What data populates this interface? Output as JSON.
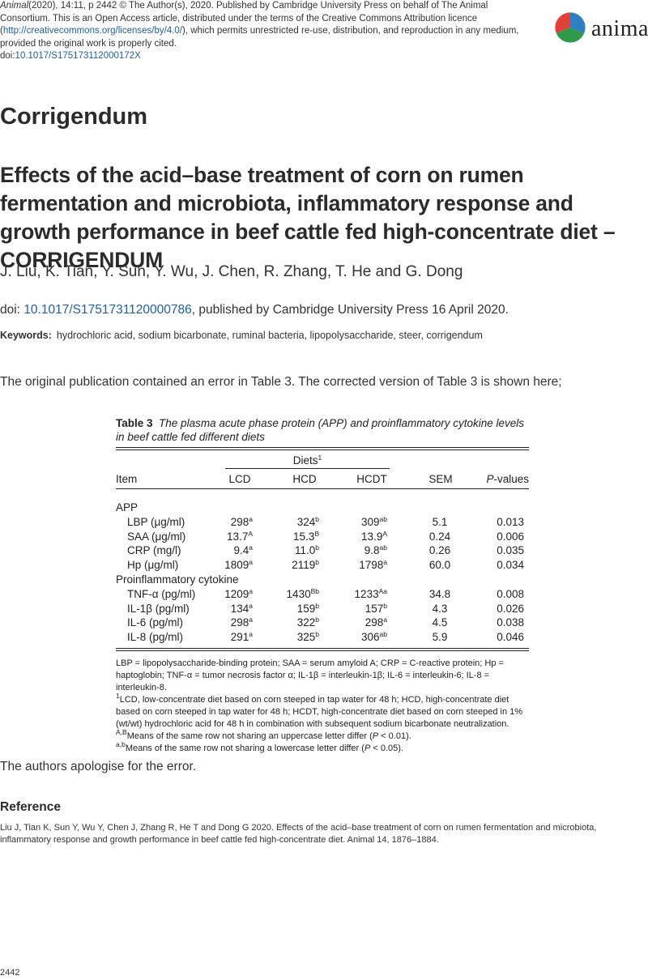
{
  "header": {
    "journal": "Animal",
    "meta": "(2020), 14:11, p 2442",
    "copyright": "© The Author(s), 2020. Published by Cambridge University Press on behalf of The Animal Consortium. This is an Open Access article, distributed under the terms of the Creative Commons Attribution licence (",
    "license_url": "http://creativecommons.org/licenses/by/4.0/",
    "copyright_end": "), which permits unrestricted re-use, distribution, and reproduction in any medium, provided the original work is properly cited.",
    "doi_prefix": "doi:",
    "doi": "10.1017/S175173112000172X",
    "logo_text": "animal"
  },
  "article": {
    "kind": "Corrigendum",
    "title": "Effects of the acid–base treatment of corn on rumen fermentation and microbiota, inflammatory response and growth performance in beef cattle fed high-concentrate diet – CORRIGENDUM",
    "authors": "J. Liu, K. Tian, Y. Sun, Y. Wu, J. Chen, R. Zhang, T. He and G. Dong",
    "doi_label": "doi: ",
    "original_doi": "10.1017/S1751731120000786",
    "doi_suffix": ", published by Cambridge University Press 16 April 2020.",
    "keywords_label": "Keywords:",
    "keywords": "hydrochloric acid, sodium bicarbonate, ruminal bacteria, lipopolysaccharide, steer, corrigendum",
    "intro": "The original publication contained an error in Table 3. The corrected version of Table 3 is shown here;",
    "apology": "The authors apologise for the error."
  },
  "table": {
    "label": "Table 3",
    "caption": "The plasma acute phase protein (APP) and proinflammatory cytokine levels in beef cattle fed different diets",
    "diets_header": "Diets",
    "diets_sup": "1",
    "columns": {
      "item": "Item",
      "lcd": "LCD",
      "hcd": "HCD",
      "hcdt": "HCDT",
      "sem": "SEM",
      "p": "P",
      "p_suffix": "-values"
    },
    "rows": [
      {
        "item": "APP",
        "indent": false,
        "header": true
      },
      {
        "item": "LBP (μg/ml)",
        "indent": true,
        "lcd": "298",
        "lcd_s": "a",
        "hcd": "324",
        "hcd_s": "b",
        "hcdt": "309",
        "hcdt_s": "ab",
        "sem": "5.1",
        "p": "0.013"
      },
      {
        "item": "SAA (μg/ml)",
        "indent": true,
        "lcd": "13.7",
        "lcd_s": "A",
        "hcd": "15.3",
        "hcd_s": "B",
        "hcdt": "13.9",
        "hcdt_s": "A",
        "sem": "0.24",
        "p": "0.006"
      },
      {
        "item": "CRP (mg/l)",
        "indent": true,
        "lcd": "9.4",
        "lcd_s": "a",
        "hcd": "11.0",
        "hcd_s": "b",
        "hcdt": "9.8",
        "hcdt_s": "ab",
        "sem": "0.26",
        "p": "0.035"
      },
      {
        "item": "Hp (μg/ml)",
        "indent": true,
        "lcd": "1809",
        "lcd_s": "a",
        "hcd": "2119",
        "hcd_s": "b",
        "hcdt": "1798",
        "hcdt_s": "a",
        "sem": "60.0",
        "p": "0.034"
      },
      {
        "item": "Proinflammatory cytokine",
        "indent": false,
        "header": true
      },
      {
        "item": "TNF-α (pg/ml)",
        "indent": true,
        "lcd": "1209",
        "lcd_s": "a",
        "hcd": "1430",
        "hcd_s": "Bb",
        "hcdt": "1233",
        "hcdt_s": "Aa",
        "sem": "34.8",
        "p": "0.008"
      },
      {
        "item": "IL-1β (pg/ml)",
        "indent": true,
        "lcd": "134",
        "lcd_s": "a",
        "hcd": "159",
        "hcd_s": "b",
        "hcdt": "157",
        "hcdt_s": "b",
        "sem": "4.3",
        "p": "0.026"
      },
      {
        "item": "IL-6 (pg/ml)",
        "indent": true,
        "lcd": "298",
        "lcd_s": "a",
        "hcd": "322",
        "hcd_s": "b",
        "hcdt": "298",
        "hcdt_s": "a",
        "sem": "4.5",
        "p": "0.038"
      },
      {
        "item": "IL-8 (pg/ml)",
        "indent": true,
        "lcd": "291",
        "lcd_s": "a",
        "hcd": "325",
        "hcd_s": "b",
        "hcdt": "306",
        "hcdt_s": "ab",
        "sem": "5.9",
        "p": "0.046"
      }
    ],
    "footnotes": {
      "abbrev": "LBP = lipopolysaccharide-binding protein; SAA = serum amyloid A; CRP = C-reactive protein; Hp = haptoglobin; TNF-α = tumor necrosis factor α; IL-1β = interleukin-1β; IL-6 = interleukin-6; IL-8 = interleukin-8.",
      "n1_mark": "1",
      "n1": "LCD, low-concentrate diet based on corn steeped in tap water for 48 h; HCD, high-concentrate diet based on corn steeped in tap water for 48 h; HCDT, high-concentrate diet based on corn steeped in 1% (wt/wt) hydrochloric acid for 48 h in combination with subsequent sodium bicarbonate neutralization.",
      "n2_mark": "A,B",
      "n2_a": "Means of the same row not sharing an uppercase letter differ (",
      "n2_p": "P",
      "n2_b": " < 0.01).",
      "n3_mark": "a,b",
      "n3_a": "Means of the same row not sharing a lowercase letter differ (",
      "n3_p": "P",
      "n3_b": " < 0.05)."
    }
  },
  "reference": {
    "heading": "Reference",
    "text": "Liu J, Tian K, Sun Y, Wu Y, Chen J, Zhang R, He T and Dong G 2020. Effects of the acid–base treatment of corn on rumen fermentation and microbiota, inflammatory response and growth performance in beef cattle fed high-concentrate diet. Animal 14, 1876–1884."
  },
  "page_number": "2442",
  "colors": {
    "link": "#1f5fa8",
    "logo_red": "#e0413a",
    "logo_blue": "#2f7fc1",
    "logo_green": "#2e9a4a"
  }
}
